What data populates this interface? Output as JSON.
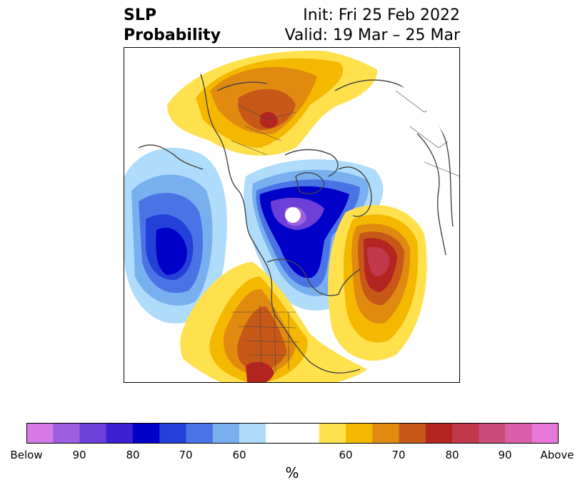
{
  "header": {
    "title_line1": "SLP",
    "title_line2": "Probability",
    "init_label": "Init: Fri 25 Feb 2022",
    "valid_label": "Valid: 19 Mar – 25 Mar"
  },
  "colorbar": {
    "unit": "%",
    "colors": [
      "#d67ae8",
      "#9d5ee0",
      "#6b3fd8",
      "#3b1fd0",
      "#0000c8",
      "#2340d8",
      "#4a74e6",
      "#78b0ef",
      "#aedcfa",
      "#ffffff",
      "#ffffff",
      "#ffe14d",
      "#f5b800",
      "#e08a10",
      "#c85818",
      "#b42420",
      "#c0384c",
      "#cc4c7a",
      "#db5ea8",
      "#e878d8"
    ],
    "tick_labels": [
      "Below",
      "90",
      "80",
      "70",
      "60",
      "",
      "60",
      "70",
      "80",
      "90",
      "Above"
    ]
  },
  "map": {
    "description_colors": {
      "below_strong": "#0000c8",
      "below_medium": "#4a74e6",
      "below_weak": "#aedcfa",
      "above_weak": "#ffe14d",
      "above_medium": "#e08a10",
      "above_strong": "#b42420",
      "above_max": "#c0384c",
      "below_max": "#8a4fe0",
      "coastline": "#444444"
    }
  }
}
